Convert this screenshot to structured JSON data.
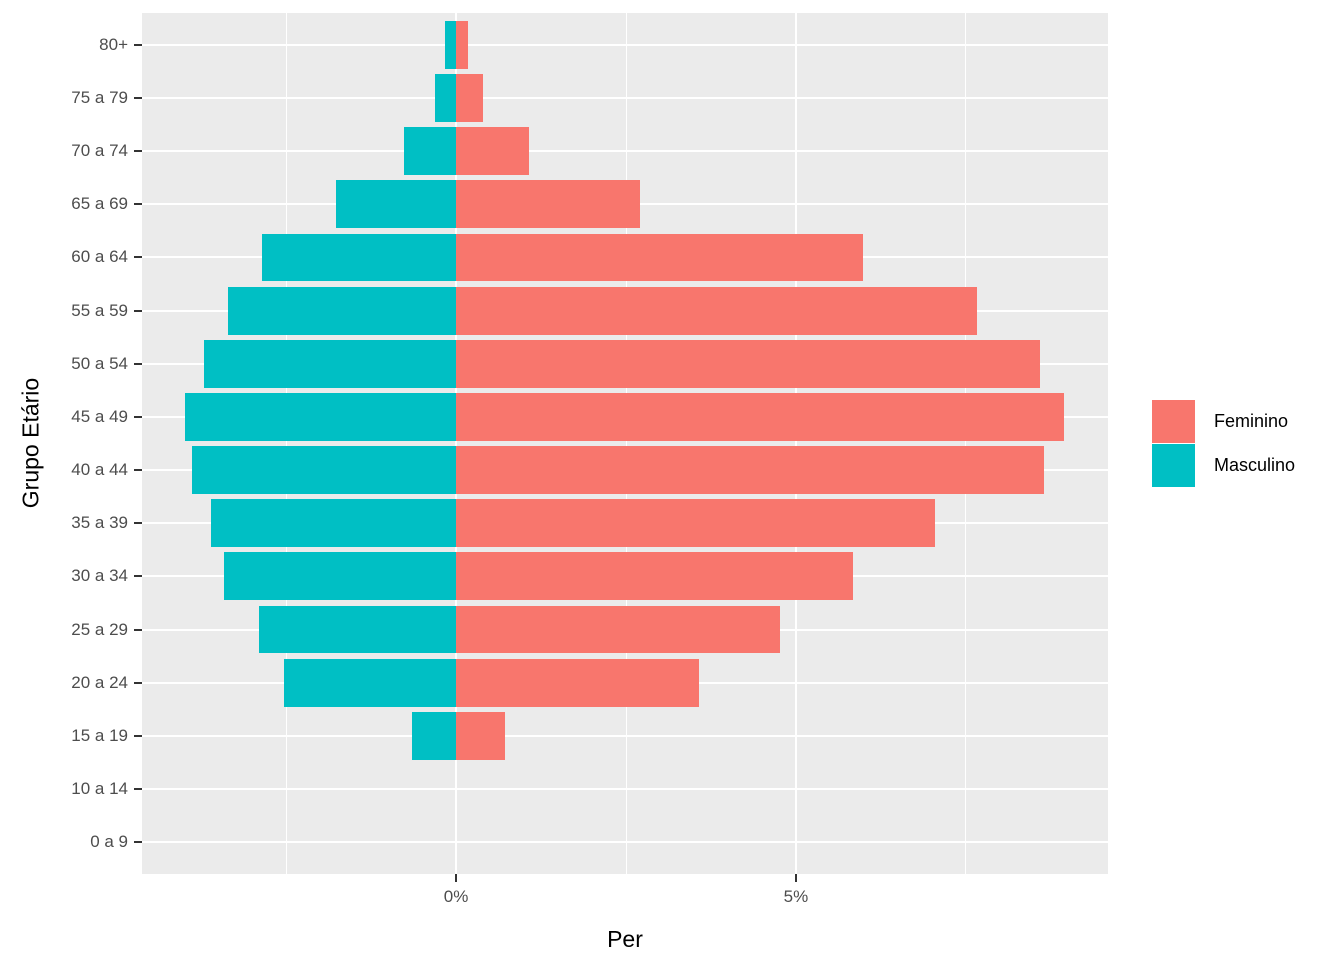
{
  "chart_data": {
    "type": "bar",
    "variant": "population-pyramid",
    "title": "",
    "xlabel": "Per",
    "ylabel": "Grupo Etário",
    "categories": [
      "80+",
      "75 a 79",
      "70 a 74",
      "65 a 69",
      "60 a 64",
      "55 a 59",
      "50 a 54",
      "45 a 49",
      "40 a 44",
      "35 a 39",
      "30 a 34",
      "25 a 29",
      "20 a 24",
      "15 a 19",
      "10 a 14",
      "0 a 9"
    ],
    "series": [
      {
        "name": "Feminino",
        "side": "right",
        "color": "#F8766D",
        "values": [
          0.18,
          0.39,
          1.08,
          2.7,
          5.99,
          7.67,
          8.59,
          8.94,
          8.65,
          7.05,
          5.84,
          4.76,
          3.58,
          0.72,
          0,
          0
        ]
      },
      {
        "name": "Masculino",
        "side": "left",
        "color": "#00BFC4",
        "values": [
          0.16,
          0.31,
          0.76,
          1.77,
          2.85,
          3.35,
          3.71,
          3.99,
          3.89,
          3.6,
          3.42,
          2.9,
          2.53,
          0.65,
          0,
          0
        ]
      }
    ],
    "xlim": [
      -4.62,
      9.59
    ],
    "x_ticks": [
      {
        "value": 0,
        "label": "0%"
      },
      {
        "value": 5,
        "label": "5%"
      }
    ],
    "x_minor_ticks": [
      -2.5,
      2.5,
      7.5
    ],
    "legend_position": "right",
    "grid": "on",
    "panel_background": "#EBEBEB",
    "grid_color": "#FFFFFF",
    "tick_label_color": "#4D4D4D",
    "axis_title_color": "#000000"
  }
}
